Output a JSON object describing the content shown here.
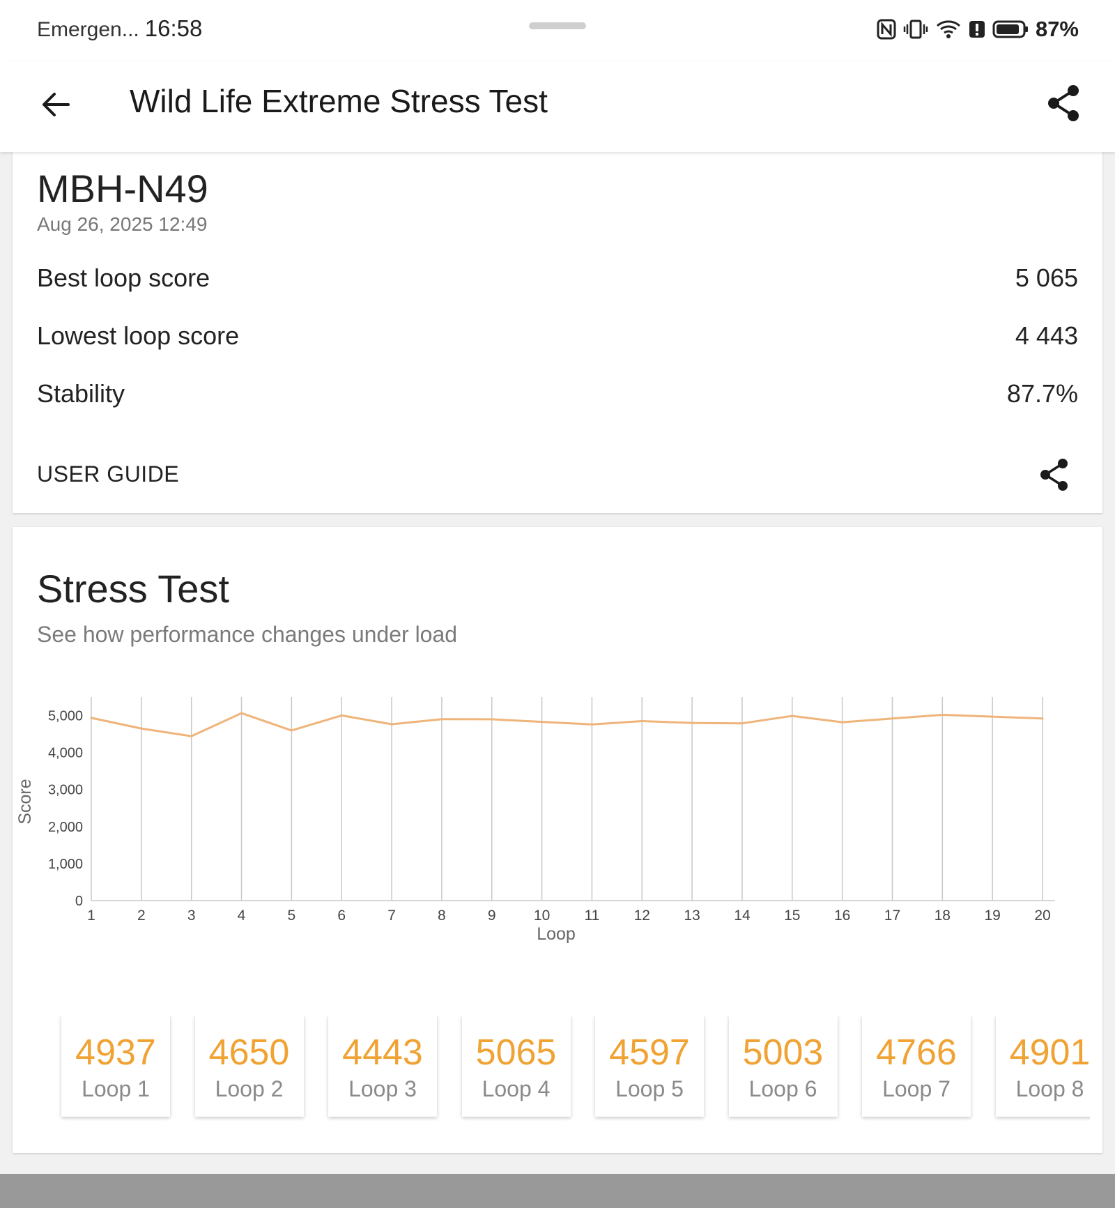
{
  "status_bar": {
    "carrier": "Emergen...",
    "time": "16:58",
    "battery": "87%"
  },
  "app_bar": {
    "title": "Wild Life Extreme Stress Test"
  },
  "result": {
    "device": "MBH-N49",
    "date": "Aug 26, 2025 12:49",
    "best_label": "Best loop score",
    "best_value": "5 065",
    "lowest_label": "Lowest loop score",
    "lowest_value": "4 443",
    "stability_label": "Stability",
    "stability_value": "87.7%",
    "user_guide": "USER GUIDE"
  },
  "stress_test": {
    "title": "Stress Test",
    "subtitle": "See how performance changes under load"
  },
  "chart_data": {
    "type": "line",
    "xlabel": "Loop",
    "ylabel": "Score",
    "x": [
      1,
      2,
      3,
      4,
      5,
      6,
      7,
      8,
      9,
      10,
      11,
      12,
      13,
      14,
      15,
      16,
      17,
      18,
      19,
      20
    ],
    "ylim": [
      0,
      5500
    ],
    "yticks": [
      "0",
      "1,000",
      "2,000",
      "3,000",
      "4,000",
      "5,000"
    ],
    "series": [
      {
        "values": [
          4937,
          4650,
          4443,
          5065,
          4597,
          5003,
          4766,
          4901,
          4900,
          4830,
          4760,
          4850,
          4800,
          4790,
          4990,
          4820,
          4920,
          5020,
          4970,
          4920
        ]
      }
    ],
    "line_color": "#efb47a",
    "grid": "vertical"
  },
  "loops": [
    {
      "score": "4937",
      "label": "Loop 1"
    },
    {
      "score": "4650",
      "label": "Loop 2"
    },
    {
      "score": "4443",
      "label": "Loop 3"
    },
    {
      "score": "5065",
      "label": "Loop 4"
    },
    {
      "score": "4597",
      "label": "Loop 5"
    },
    {
      "score": "5003",
      "label": "Loop 6"
    },
    {
      "score": "4766",
      "label": "Loop 7"
    },
    {
      "score": "4901",
      "label": "Loop 8"
    }
  ]
}
